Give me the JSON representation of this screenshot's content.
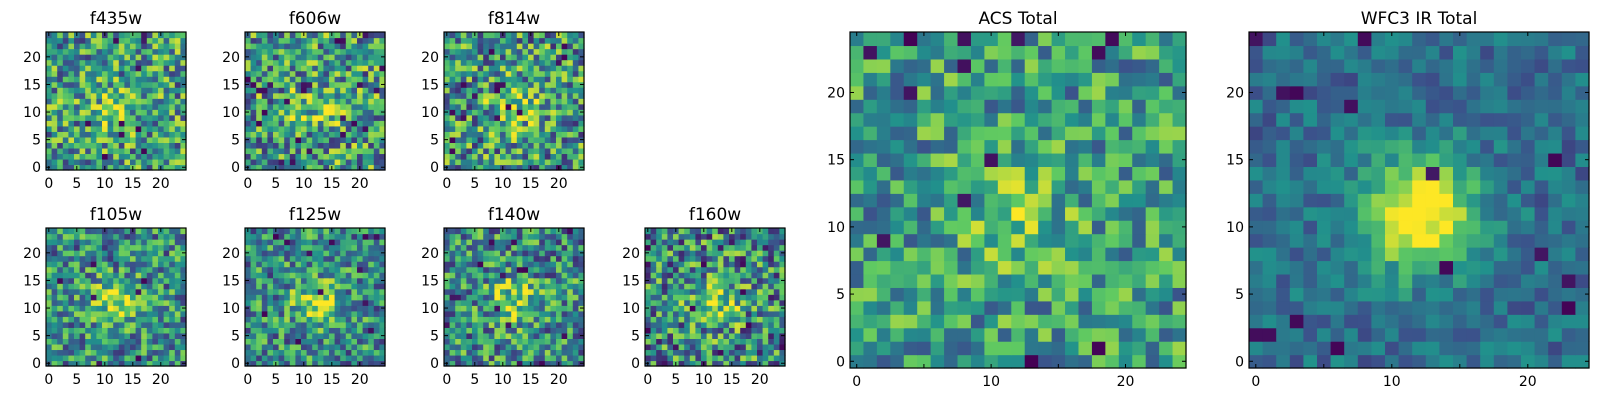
{
  "chart_data": [
    {
      "type": "heatmap",
      "title": "f435w",
      "grid_size": 25,
      "seed": 11,
      "blob": 0.2,
      "spread": 0.38,
      "dark_rate": 0.02,
      "xticks": [
        "0",
        "5",
        "10",
        "15",
        "20"
      ],
      "yticks": [
        "0",
        "5",
        "10",
        "15",
        "20"
      ],
      "tick_values": [
        0,
        5,
        10,
        15,
        20
      ]
    },
    {
      "type": "heatmap",
      "title": "f606w",
      "grid_size": 25,
      "seed": 23,
      "blob": 0.2,
      "spread": 0.4,
      "dark_rate": 0.03,
      "xticks": [
        "0",
        "5",
        "10",
        "15",
        "20"
      ],
      "yticks": [
        "0",
        "5",
        "10",
        "15",
        "20"
      ],
      "tick_values": [
        0,
        5,
        10,
        15,
        20
      ]
    },
    {
      "type": "heatmap",
      "title": "f814w",
      "grid_size": 25,
      "seed": 37,
      "blob": 0.25,
      "spread": 0.4,
      "dark_rate": 0.03,
      "xticks": [
        "0",
        "5",
        "10",
        "15",
        "20"
      ],
      "yticks": [
        "0",
        "5",
        "10",
        "15",
        "20"
      ],
      "tick_values": [
        0,
        5,
        10,
        15,
        20
      ]
    },
    {
      "type": "heatmap",
      "title": "f105w",
      "grid_size": 25,
      "seed": 41,
      "blob": 0.35,
      "spread": 0.34,
      "dark_rate": 0.015,
      "xticks": [
        "0",
        "5",
        "10",
        "15",
        "20"
      ],
      "yticks": [
        "0",
        "5",
        "10",
        "15",
        "20"
      ],
      "tick_values": [
        0,
        5,
        10,
        15,
        20
      ]
    },
    {
      "type": "heatmap",
      "title": "f125w",
      "grid_size": 25,
      "seed": 53,
      "blob": 0.38,
      "spread": 0.34,
      "dark_rate": 0.02,
      "xticks": [
        "0",
        "5",
        "10",
        "15",
        "20"
      ],
      "yticks": [
        "0",
        "5",
        "10",
        "15",
        "20"
      ],
      "tick_values": [
        0,
        5,
        10,
        15,
        20
      ]
    },
    {
      "type": "heatmap",
      "title": "f140w",
      "grid_size": 25,
      "seed": 67,
      "blob": 0.35,
      "spread": 0.36,
      "dark_rate": 0.02,
      "xticks": [
        "0",
        "5",
        "10",
        "15",
        "20"
      ],
      "yticks": [
        "0",
        "5",
        "10",
        "15",
        "20"
      ],
      "tick_values": [
        0,
        5,
        10,
        15,
        20
      ]
    },
    {
      "type": "heatmap",
      "title": "f160w",
      "grid_size": 25,
      "seed": 79,
      "blob": 0.4,
      "spread": 0.4,
      "dark_rate": 0.03,
      "xticks": [
        "0",
        "5",
        "10",
        "15",
        "20"
      ],
      "yticks": [
        "0",
        "5",
        "10",
        "15",
        "20"
      ],
      "tick_values": [
        0,
        5,
        10,
        15,
        20
      ]
    },
    {
      "type": "heatmap",
      "title": "ACS Total",
      "grid_size": 25,
      "seed": 97,
      "blob": 0.2,
      "spread": 0.3,
      "dark_rate": 0.03,
      "xticks": [
        "0",
        "10",
        "20"
      ],
      "yticks": [
        "0",
        "5",
        "10",
        "15",
        "20"
      ],
      "xtick_values": [
        0,
        5,
        10,
        15,
        20
      ],
      "xtick_labels": [
        "0",
        "",
        "10",
        "",
        "20"
      ],
      "tick_values": [
        0,
        5,
        10,
        15,
        20
      ]
    },
    {
      "type": "heatmap",
      "title": "WFC3 IR Total",
      "grid_size": 25,
      "seed": 113,
      "blob": 0.75,
      "spread": 0.15,
      "dark_rate": 0.02,
      "xticks": [
        "0",
        "10",
        "20"
      ],
      "yticks": [
        "0",
        "5",
        "10",
        "15",
        "20"
      ],
      "xtick_values": [
        0,
        5,
        10,
        15,
        20
      ],
      "xtick_labels": [
        "0",
        "",
        "10",
        "",
        "20"
      ],
      "tick_values": [
        0,
        5,
        10,
        15,
        20
      ]
    }
  ],
  "colormap": [
    "#440154",
    "#3b528b",
    "#21918c",
    "#5ec962",
    "#fde725"
  ]
}
